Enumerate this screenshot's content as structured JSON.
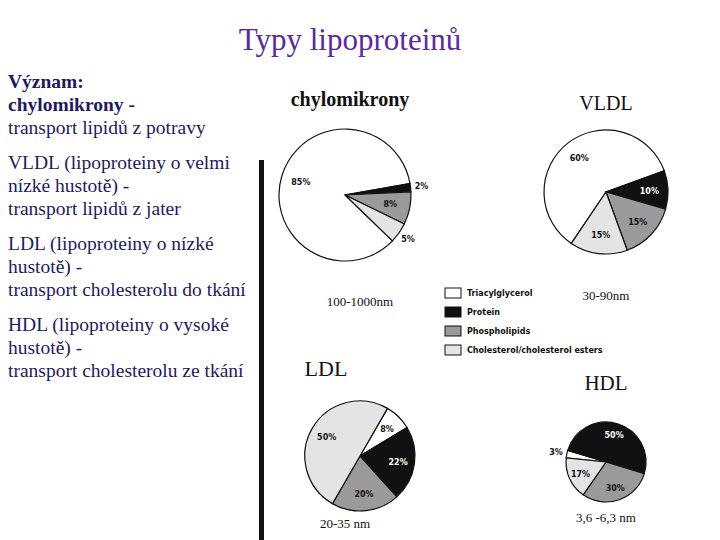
{
  "title": "Typy lipoproteinů",
  "text": {
    "heading": "Význam:",
    "items": [
      {
        "term": "chylomikrony -",
        "text": "transport lipidů z potravy"
      },
      {
        "term": "VLDL (lipoproteiny o velmi nízké hustotě) -",
        "text": "transport  lipidů z jater"
      },
      {
        "term": "LDL (lipoproteiny o nízké hustotě) -",
        "text": "transport cholesterolu do tkání"
      },
      {
        "term": "HDL (lipoproteiny o vysoké hustotě) -",
        "text": "transport cholesterolu ze tkání"
      }
    ]
  },
  "chart_data": [
    {
      "type": "pie",
      "title": "chylomikrony",
      "annotation": "100-1000nm",
      "categories": [
        "Triacylglycerol",
        "Protein",
        "Phospholipids",
        "Cholesterol/cholesterol esters"
      ],
      "values": [
        85,
        2,
        8,
        5
      ],
      "value_labels": [
        "85%",
        "2%",
        "8%",
        "5%"
      ],
      "colors": [
        "#ffffff",
        "#111111",
        "#9a9a9a",
        "#e4e4e4"
      ],
      "data_labels": true,
      "legend": "center"
    },
    {
      "type": "pie",
      "title": "VLDL",
      "annotation": "30-90nm",
      "categories": [
        "Triacylglycerol",
        "Protein",
        "Phospholipids",
        "Cholesterol/cholesterol esters"
      ],
      "values": [
        60,
        10,
        15,
        15
      ],
      "value_labels": [
        "60%",
        "10%",
        "15%",
        "15%"
      ],
      "colors": [
        "#ffffff",
        "#111111",
        "#9a9a9a",
        "#e4e4e4"
      ],
      "data_labels": true
    },
    {
      "type": "pie",
      "title": "LDL",
      "annotation": "20-35 nm",
      "categories": [
        "Triacylglycerol",
        "Protein",
        "Phospholipids",
        "Cholesterol/cholesterol esters"
      ],
      "values": [
        8,
        22,
        20,
        50
      ],
      "value_labels": [
        "8%",
        "22%",
        "20%",
        "50%"
      ],
      "colors": [
        "#ffffff",
        "#111111",
        "#9a9a9a",
        "#e4e4e4"
      ],
      "data_labels": true
    },
    {
      "type": "pie",
      "title": "HDL",
      "annotation": "3,6 -6,3 nm",
      "categories": [
        "Triacylglycerol",
        "Protein",
        "Phospholipids",
        "Cholesterol/cholesterol esters"
      ],
      "values": [
        3,
        50,
        30,
        17
      ],
      "value_labels": [
        "3%",
        "50%",
        "30%",
        "17%"
      ],
      "colors": [
        "#ffffff",
        "#111111",
        "#9a9a9a",
        "#e4e4e4"
      ],
      "data_labels": true
    }
  ]
}
